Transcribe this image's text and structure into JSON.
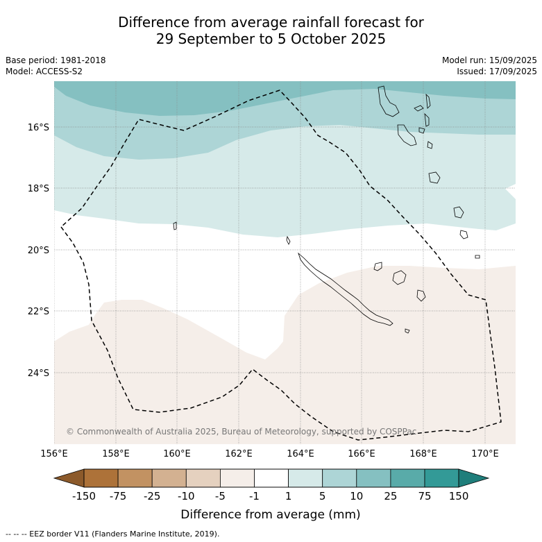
{
  "title": {
    "line1": "Difference from average rainfall forecast for",
    "line2": "29 September to 5 October 2025"
  },
  "meta_left": {
    "base_period": "Base period: 1981-2018",
    "model": "Model: ACCESS-S2"
  },
  "meta_right": {
    "model_run": "Model run: 15/09/2025",
    "issued": "Issued: 17/09/2025"
  },
  "map": {
    "lon_range": [
      156,
      171
    ],
    "lat_range": [
      -26.3,
      -14.5
    ],
    "lon_ticks": [
      "156°E",
      "158°E",
      "160°E",
      "162°E",
      "164°E",
      "166°E",
      "168°E",
      "170°E"
    ],
    "lat_ticks": [
      "16°S",
      "18°S",
      "20°S",
      "22°S",
      "24°S"
    ],
    "gridlines": true,
    "copyright": "© Commonwealth of Australia 2025, Bureau of Meteorology, supported by COSPPac"
  },
  "colorbar": {
    "label": "Difference from average (mm)",
    "tick_labels": [
      "-150",
      "-75",
      "-25",
      "-10",
      "-5",
      "-1",
      "1",
      "5",
      "10",
      "25",
      "75",
      "150"
    ],
    "colors": [
      "#8c5a2b",
      "#ad7239",
      "#c29262",
      "#d3b191",
      "#e5d1bf",
      "#f5eee9",
      "#ffffff",
      "#d6eae9",
      "#add5d6",
      "#85c0c1",
      "#59aba9",
      "#339a97",
      "#1f7e7b"
    ]
  },
  "footer": {
    "legend_text": "--  --  -- EEZ border V11 (Flanders Marine Institute, 2019)."
  }
}
